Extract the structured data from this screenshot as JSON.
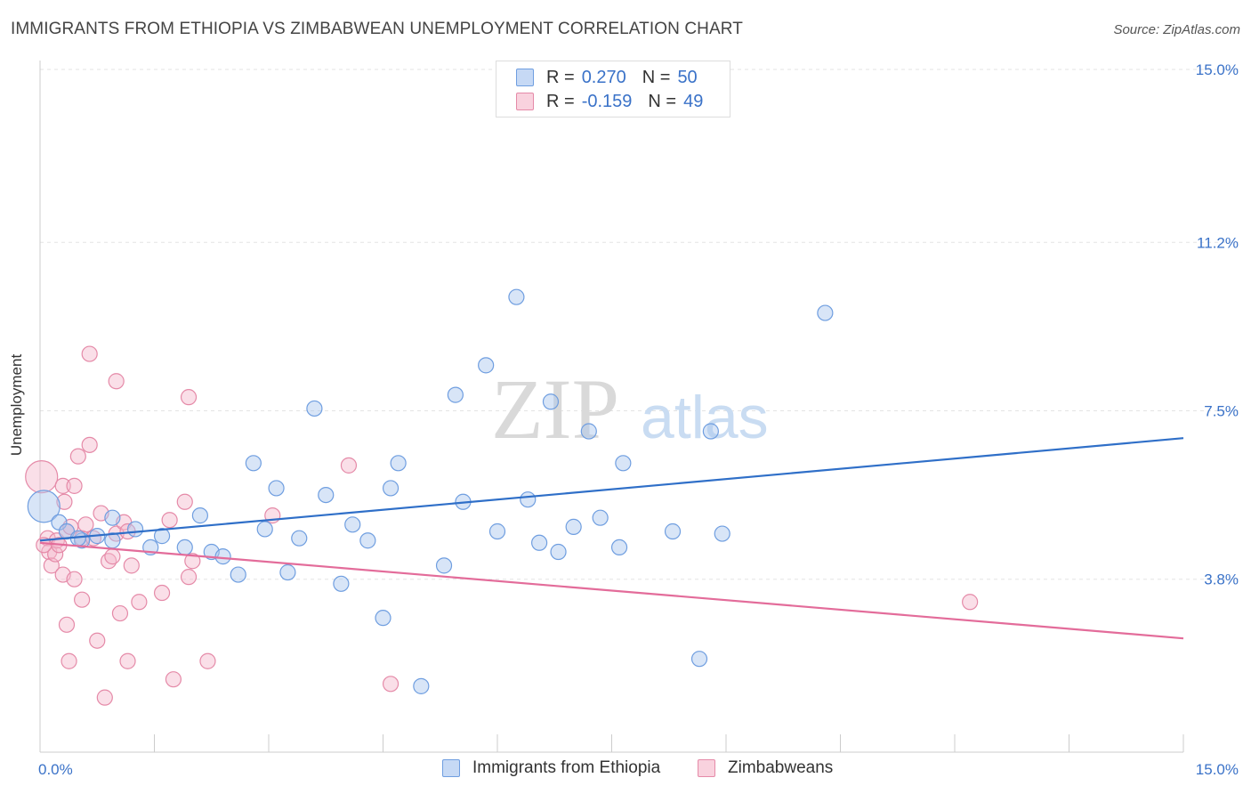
{
  "header": {
    "title": "IMMIGRANTS FROM ETHIOPIA VS ZIMBABWEAN UNEMPLOYMENT CORRELATION CHART",
    "source": "Source: ZipAtlas.com"
  },
  "watermark": {
    "zip": "ZIP",
    "atlas": "atlas"
  },
  "legend": {
    "items": [
      {
        "r_label": "R =",
        "r_value": "0.270",
        "n_label": "N =",
        "n_value": "50",
        "color": "#a9c6ee"
      },
      {
        "r_label": "R =",
        "r_value": "-0.159",
        "n_label": "N =",
        "n_value": "49",
        "color": "#f4b8cb"
      }
    ]
  },
  "bottom_legend": [
    {
      "label": "Immigrants from Ethiopia",
      "color": "#a9c6ee"
    },
    {
      "label": "Zimbabweans",
      "color": "#f4b8cb"
    }
  ],
  "chart_data": {
    "type": "scatter",
    "title": "IMMIGRANTS FROM ETHIOPIA VS ZIMBABWEAN UNEMPLOYMENT CORRELATION CHART",
    "xlabel": "",
    "ylabel": "Unemployment",
    "xlim": [
      0,
      15
    ],
    "ylim": [
      0,
      15
    ],
    "x_tick_labels": [
      "0.0%",
      "15.0%"
    ],
    "y_tick_labels": [
      "3.8%",
      "7.5%",
      "11.2%",
      "15.0%"
    ],
    "y_tick_values": [
      3.8,
      7.5,
      11.2,
      15.0
    ],
    "grid": true,
    "legend_position": "top-center",
    "series": [
      {
        "name": "Immigrants from Ethiopia",
        "color": "#a9c6ee",
        "stroke": "#6f9ee0",
        "trend_color": "#2f6fc8",
        "trend": {
          "x": [
            0,
            15
          ],
          "y": [
            4.65,
            6.9
          ]
        },
        "points": [
          {
            "x": 0.05,
            "y": 5.4,
            "big": true
          },
          {
            "x": 0.25,
            "y": 5.05
          },
          {
            "x": 0.35,
            "y": 4.85
          },
          {
            "x": 0.55,
            "y": 4.65
          },
          {
            "x": 0.75,
            "y": 4.75
          },
          {
            "x": 0.95,
            "y": 4.65
          },
          {
            "x": 0.95,
            "y": 5.15
          },
          {
            "x": 1.25,
            "y": 4.9
          },
          {
            "x": 1.45,
            "y": 4.5
          },
          {
            "x": 1.6,
            "y": 4.75
          },
          {
            "x": 1.9,
            "y": 4.5
          },
          {
            "x": 2.1,
            "y": 5.2
          },
          {
            "x": 2.25,
            "y": 4.4
          },
          {
            "x": 2.4,
            "y": 4.3
          },
          {
            "x": 2.6,
            "y": 3.9
          },
          {
            "x": 2.8,
            "y": 6.35
          },
          {
            "x": 2.95,
            "y": 4.9
          },
          {
            "x": 3.1,
            "y": 5.8
          },
          {
            "x": 3.25,
            "y": 3.95
          },
          {
            "x": 3.4,
            "y": 4.7
          },
          {
            "x": 3.6,
            "y": 7.55
          },
          {
            "x": 3.75,
            "y": 5.65
          },
          {
            "x": 3.95,
            "y": 3.7
          },
          {
            "x": 4.1,
            "y": 5.0
          },
          {
            "x": 4.3,
            "y": 4.65
          },
          {
            "x": 4.5,
            "y": 2.95
          },
          {
            "x": 4.6,
            "y": 5.8
          },
          {
            "x": 4.7,
            "y": 6.35
          },
          {
            "x": 5.0,
            "y": 1.45
          },
          {
            "x": 5.3,
            "y": 4.1
          },
          {
            "x": 5.45,
            "y": 7.85
          },
          {
            "x": 5.55,
            "y": 5.5
          },
          {
            "x": 5.85,
            "y": 8.5
          },
          {
            "x": 6.0,
            "y": 4.85
          },
          {
            "x": 6.25,
            "y": 10.0
          },
          {
            "x": 6.4,
            "y": 5.55
          },
          {
            "x": 6.55,
            "y": 4.6
          },
          {
            "x": 6.7,
            "y": 7.7
          },
          {
            "x": 6.8,
            "y": 4.4
          },
          {
            "x": 7.0,
            "y": 4.95
          },
          {
            "x": 7.2,
            "y": 7.05
          },
          {
            "x": 7.35,
            "y": 5.15
          },
          {
            "x": 7.6,
            "y": 4.5
          },
          {
            "x": 7.65,
            "y": 6.35
          },
          {
            "x": 8.3,
            "y": 4.85
          },
          {
            "x": 8.65,
            "y": 2.05
          },
          {
            "x": 8.8,
            "y": 7.05
          },
          {
            "x": 8.95,
            "y": 4.8
          },
          {
            "x": 10.3,
            "y": 9.65
          },
          {
            "x": 0.5,
            "y": 4.7
          }
        ]
      },
      {
        "name": "Zimbabweans",
        "color": "#f4b8cb",
        "stroke": "#e58aa8",
        "trend_color": "#e36c9a",
        "trend": {
          "x": [
            0,
            15
          ],
          "y": [
            4.6,
            2.5
          ]
        },
        "points": [
          {
            "x": 0.02,
            "y": 6.05,
            "big": true
          },
          {
            "x": 0.1,
            "y": 4.7
          },
          {
            "x": 0.12,
            "y": 4.4
          },
          {
            "x": 0.15,
            "y": 4.1
          },
          {
            "x": 0.2,
            "y": 4.35
          },
          {
            "x": 0.22,
            "y": 4.65
          },
          {
            "x": 0.25,
            "y": 4.55
          },
          {
            "x": 0.3,
            "y": 3.9
          },
          {
            "x": 0.3,
            "y": 5.85
          },
          {
            "x": 0.32,
            "y": 5.5
          },
          {
            "x": 0.35,
            "y": 4.85
          },
          {
            "x": 0.35,
            "y": 2.8
          },
          {
            "x": 0.38,
            "y": 2.0
          },
          {
            "x": 0.4,
            "y": 4.95
          },
          {
            "x": 0.45,
            "y": 3.8
          },
          {
            "x": 0.45,
            "y": 5.85
          },
          {
            "x": 0.5,
            "y": 6.5
          },
          {
            "x": 0.55,
            "y": 4.7
          },
          {
            "x": 0.55,
            "y": 3.35
          },
          {
            "x": 0.6,
            "y": 5.0
          },
          {
            "x": 0.65,
            "y": 6.75
          },
          {
            "x": 0.65,
            "y": 8.75
          },
          {
            "x": 0.7,
            "y": 4.7
          },
          {
            "x": 0.75,
            "y": 2.45
          },
          {
            "x": 0.8,
            "y": 5.25
          },
          {
            "x": 0.85,
            "y": 1.2
          },
          {
            "x": 0.9,
            "y": 4.2
          },
          {
            "x": 0.95,
            "y": 4.3
          },
          {
            "x": 1.0,
            "y": 4.8
          },
          {
            "x": 1.0,
            "y": 8.15
          },
          {
            "x": 1.05,
            "y": 3.05
          },
          {
            "x": 1.1,
            "y": 5.05
          },
          {
            "x": 1.15,
            "y": 4.85
          },
          {
            "x": 1.15,
            "y": 2.0
          },
          {
            "x": 1.2,
            "y": 4.1
          },
          {
            "x": 1.3,
            "y": 3.3
          },
          {
            "x": 1.6,
            "y": 3.5
          },
          {
            "x": 1.7,
            "y": 5.1
          },
          {
            "x": 1.75,
            "y": 1.6
          },
          {
            "x": 1.9,
            "y": 5.5
          },
          {
            "x": 1.95,
            "y": 3.85
          },
          {
            "x": 1.95,
            "y": 7.8
          },
          {
            "x": 2.0,
            "y": 4.2
          },
          {
            "x": 2.2,
            "y": 2.0
          },
          {
            "x": 3.05,
            "y": 5.2
          },
          {
            "x": 4.05,
            "y": 6.3
          },
          {
            "x": 4.6,
            "y": 1.5
          },
          {
            "x": 12.2,
            "y": 3.3
          },
          {
            "x": 0.05,
            "y": 4.55
          }
        ]
      }
    ]
  }
}
